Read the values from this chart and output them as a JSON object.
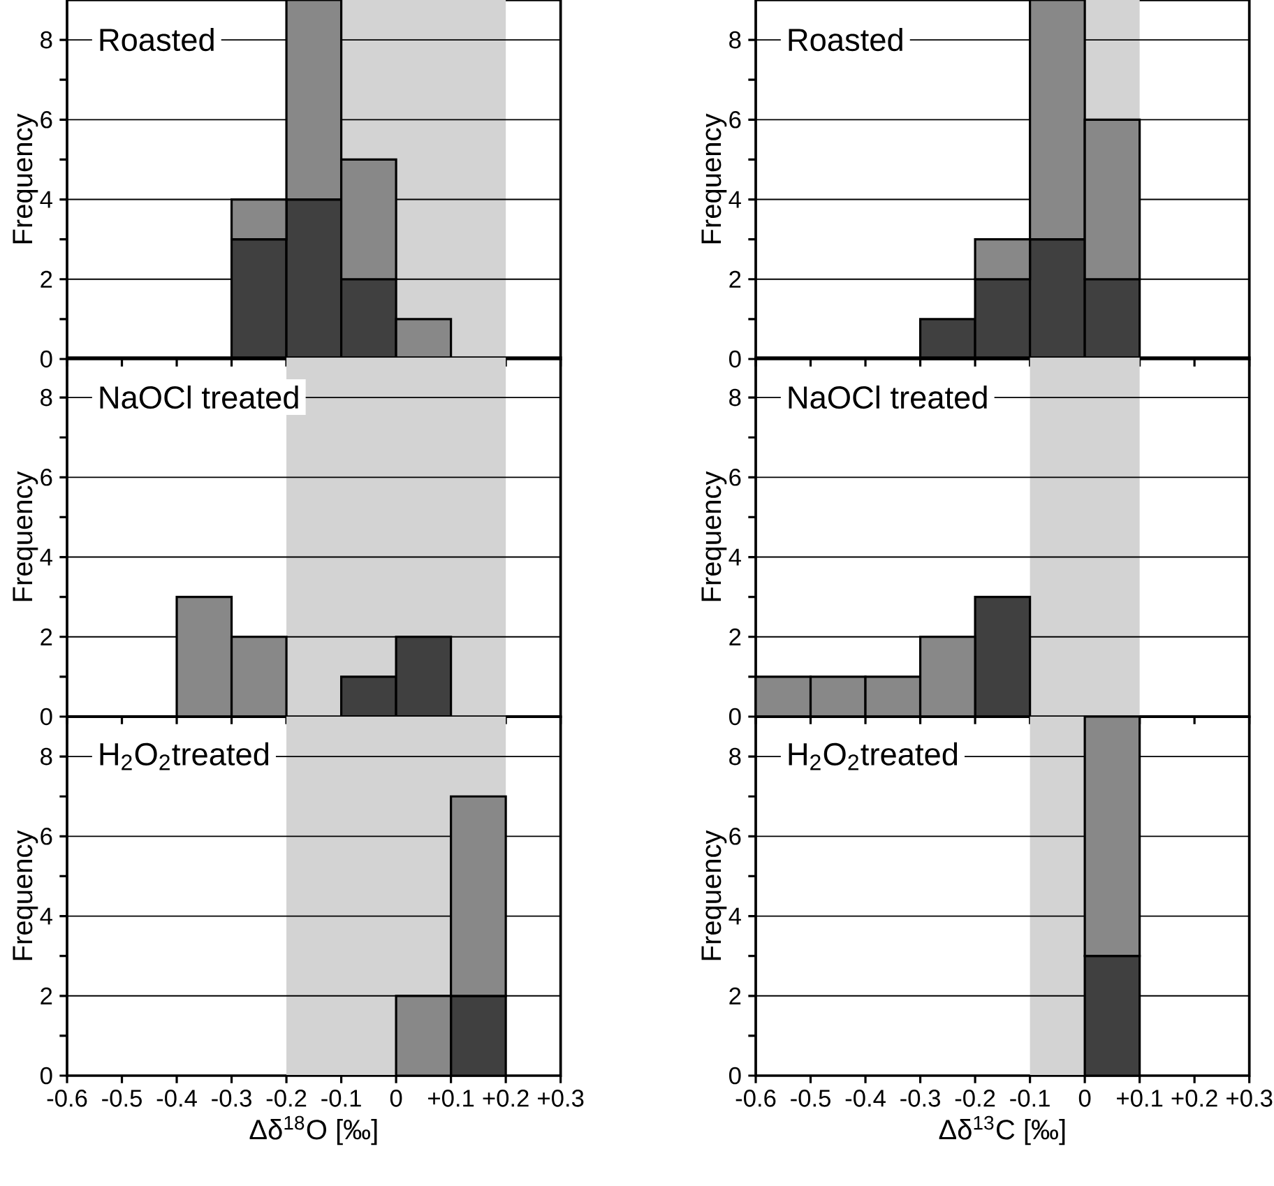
{
  "chart_data": [
    {
      "type": "bar",
      "title": "Roasted",
      "ylabel": "Frequency",
      "x": [
        -0.25,
        -0.15,
        -0.05,
        0.05
      ],
      "stacked": true,
      "series": [
        {
          "color": "#404040",
          "values": [
            3,
            4,
            2,
            null
          ]
        },
        {
          "color": "#888888",
          "values": [
            1,
            5,
            3,
            1
          ]
        }
      ],
      "xlim": [
        -0.6,
        0.3
      ],
      "xticks": [
        -0.6,
        -0.5,
        -0.4,
        -0.3,
        -0.2,
        -0.1,
        0,
        {
          "value": 0.1,
          "label": null
        },
        {
          "value": 0.2,
          "label": null
        },
        {
          "value": 0.3,
          "label": null
        }
      ],
      "ylim": [
        0,
        9
      ],
      "yticks": [
        0,
        {
          "value": 1,
          "label": null
        },
        2,
        {
          "value": 3,
          "label": null
        },
        4,
        {
          "value": 5,
          "label": null
        },
        6,
        {
          "value": 7,
          "label": null
        },
        8
      ],
      "grid": "y",
      "tick_labels": "y",
      "bands": [
        {
          "axis": "x",
          "from": -0.2,
          "to": 0.2,
          "color": "#d3d3d3"
        }
      ]
    },
    {
      "type": "bar",
      "title": "Roasted",
      "ylabel": "Frequency",
      "x": [
        -0.25,
        -0.15,
        -0.05,
        0.05
      ],
      "stacked": true,
      "series": [
        {
          "color": "#404040",
          "values": [
            1,
            2,
            3,
            2
          ]
        },
        {
          "color": "#888888",
          "values": [
            null,
            1,
            6,
            4
          ]
        }
      ],
      "xlim": [
        -0.6,
        0.3
      ],
      "xticks": [
        -0.6,
        -0.5,
        -0.4,
        -0.3,
        -0.2,
        -0.1,
        0,
        {
          "value": 0.1,
          "label": null
        },
        {
          "value": 0.2,
          "label": null
        },
        {
          "value": 0.3,
          "label": null
        }
      ],
      "ylim": [
        0,
        9
      ],
      "yticks": [
        0,
        {
          "value": 1,
          "label": null
        },
        2,
        {
          "value": 3,
          "label": null
        },
        4,
        {
          "value": 5,
          "label": null
        },
        6,
        {
          "value": 7,
          "label": null
        },
        8
      ],
      "grid": "y",
      "tick_labels": "y",
      "bands": [
        {
          "axis": "x",
          "from": -0.1,
          "to": 0.1,
          "color": "#d3d3d3"
        }
      ]
    },
    {
      "type": "bar",
      "title": "NaOCl treated",
      "ylabel": "Frequency",
      "x": [
        -0.35,
        -0.25,
        -0.05,
        0.05
      ],
      "stacked": true,
      "series": [
        {
          "color": "#404040",
          "values": [
            null,
            null,
            1,
            2
          ]
        },
        {
          "color": "#888888",
          "values": [
            3,
            2,
            null,
            null
          ]
        }
      ],
      "xlim": [
        -0.6,
        0.3
      ],
      "xticks": [
        -0.6,
        -0.5,
        -0.4,
        -0.3,
        -0.2,
        -0.1,
        0,
        {
          "value": 0.1,
          "label": null
        },
        {
          "value": 0.2,
          "label": null
        },
        {
          "value": 0.3,
          "label": null
        }
      ],
      "ylim": [
        0,
        9
      ],
      "yticks": [
        0,
        {
          "value": 1,
          "label": null
        },
        2,
        {
          "value": 3,
          "label": null
        },
        4,
        {
          "value": 5,
          "label": null
        },
        6,
        {
          "value": 7,
          "label": null
        },
        8
      ],
      "grid": "y",
      "tick_labels": "y",
      "bands": [
        {
          "axis": "x",
          "from": -0.2,
          "to": 0.2,
          "color": "#d3d3d3"
        }
      ]
    },
    {
      "type": "bar",
      "title": "NaOCl treated",
      "ylabel": "Frequency",
      "x": [
        -0.55,
        -0.45,
        -0.35,
        -0.25,
        -0.15
      ],
      "stacked": true,
      "series": [
        {
          "color": "#404040",
          "values": [
            null,
            null,
            null,
            null,
            3
          ]
        },
        {
          "color": "#888888",
          "values": [
            1,
            1,
            1,
            2,
            null
          ]
        }
      ],
      "xlim": [
        -0.6,
        0.3
      ],
      "xticks": [
        -0.6,
        -0.5,
        -0.4,
        -0.3,
        -0.2,
        -0.1,
        0,
        {
          "value": 0.1,
          "label": null
        },
        {
          "value": 0.2,
          "label": null
        },
        {
          "value": 0.3,
          "label": null
        }
      ],
      "ylim": [
        0,
        9
      ],
      "yticks": [
        0,
        {
          "value": 1,
          "label": null
        },
        2,
        {
          "value": 3,
          "label": null
        },
        4,
        {
          "value": 5,
          "label": null
        },
        6,
        {
          "value": 7,
          "label": null
        },
        8
      ],
      "grid": "y",
      "tick_labels": "y",
      "bands": [
        {
          "axis": "x",
          "from": -0.1,
          "to": 0.1,
          "color": "#d3d3d3"
        }
      ]
    },
    {
      "type": "bar",
      "title": "H$_{2}$O$_{2}$treated",
      "ylabel": "Frequency",
      "xlabel": "Δδ$^{18}$O [‰]",
      "x": [
        0.05,
        0.15
      ],
      "stacked": true,
      "series": [
        {
          "color": "#404040",
          "values": [
            null,
            2
          ]
        },
        {
          "color": "#888888",
          "values": [
            2,
            5
          ]
        }
      ],
      "xlim": [
        -0.6,
        0.3
      ],
      "xticks": [
        -0.6,
        -0.5,
        -0.4,
        -0.3,
        -0.2,
        -0.1,
        0,
        {
          "value": 0.1,
          "label": "+0.1"
        },
        {
          "value": 0.2,
          "label": "+0.2"
        },
        {
          "value": 0.3,
          "label": "+0.3"
        }
      ],
      "ylim": [
        0,
        9
      ],
      "yticks": [
        0,
        {
          "value": 1,
          "label": null
        },
        2,
        {
          "value": 3,
          "label": null
        },
        4,
        {
          "value": 5,
          "label": null
        },
        6,
        {
          "value": 7,
          "label": null
        },
        8
      ],
      "grid": "y",
      "bands": [
        {
          "axis": "x",
          "from": -0.2,
          "to": 0.2,
          "color": "#d3d3d3"
        }
      ]
    },
    {
      "type": "bar",
      "title": "H$_{2}$O$_{2}$treated",
      "ylabel": "Frequency",
      "xlabel": "Δδ$^{13}$C [‰]",
      "x": [
        0.05
      ],
      "stacked": true,
      "series": [
        {
          "color": "#404040",
          "values": [
            3
          ]
        },
        {
          "color": "#888888",
          "values": [
            6
          ]
        }
      ],
      "xlim": [
        -0.6,
        0.3
      ],
      "xticks": [
        -0.6,
        -0.5,
        -0.4,
        -0.3,
        -0.2,
        -0.1,
        0,
        {
          "value": 0.1,
          "label": "+0.1"
        },
        {
          "value": 0.2,
          "label": "+0.2"
        },
        {
          "value": 0.3,
          "label": "+0.3"
        }
      ],
      "ylim": [
        0,
        9
      ],
      "yticks": [
        0,
        {
          "value": 1,
          "label": null
        },
        2,
        {
          "value": 3,
          "label": null
        },
        4,
        {
          "value": 5,
          "label": null
        },
        6,
        {
          "value": 7,
          "label": null
        },
        8
      ],
      "grid": "y",
      "bands": [
        {
          "axis": "x",
          "from": -0.1,
          "to": 0.1,
          "color": "#d3d3d3"
        }
      ]
    }
  ]
}
